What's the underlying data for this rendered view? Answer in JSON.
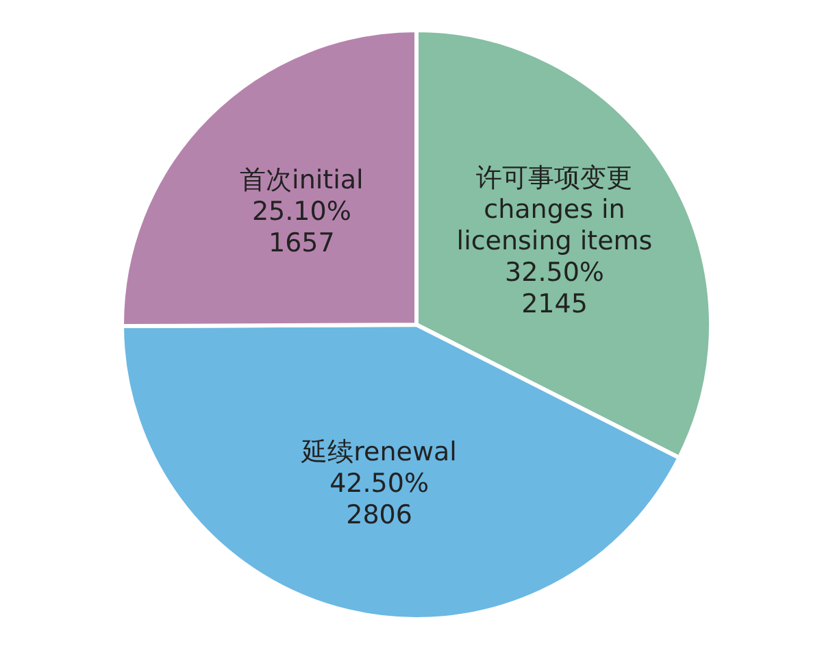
{
  "chart_data": {
    "type": "pie",
    "categories": [
      "许可事项变更\nchanges in\nlicensing items",
      "延续renewal",
      "首次initial"
    ],
    "values": [
      2145,
      2806,
      1657
    ],
    "value_labels": [
      "32.50%\n2145",
      "42.50%\n2806",
      "25.10%\n1657"
    ],
    "colors": [
      "#86bfa3",
      "#6bb8e3",
      "#b584ad"
    ],
    "legend": false
  }
}
